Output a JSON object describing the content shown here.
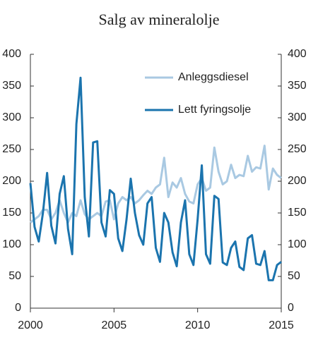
{
  "chart_data": {
    "type": "line",
    "title": "Salg av mineralolje",
    "x": [
      2000,
      2000.25,
      2000.5,
      2000.75,
      2001,
      2001.25,
      2001.5,
      2001.75,
      2002,
      2002.25,
      2002.5,
      2002.75,
      2003,
      2003.25,
      2003.5,
      2003.75,
      2004,
      2004.25,
      2004.5,
      2004.75,
      2005,
      2005.25,
      2005.5,
      2005.75,
      2006,
      2006.25,
      2006.5,
      2006.75,
      2007,
      2007.25,
      2007.5,
      2007.75,
      2008,
      2008.25,
      2008.5,
      2008.75,
      2009,
      2009.25,
      2009.5,
      2009.75,
      2010,
      2010.25,
      2010.5,
      2010.75,
      2011,
      2011.25,
      2011.5,
      2011.75,
      2012,
      2012.25,
      2012.5,
      2012.75,
      2013,
      2013.25,
      2013.5,
      2013.75,
      2014,
      2014.25,
      2014.5,
      2014.75,
      2015
    ],
    "series": [
      {
        "name": "Anleggsdiesel",
        "color": "#a9c9e2",
        "values": [
          135,
          140,
          145,
          155,
          155,
          140,
          150,
          170,
          150,
          135,
          150,
          145,
          170,
          148,
          140,
          145,
          150,
          145,
          168,
          170,
          140,
          165,
          175,
          170,
          175,
          165,
          170,
          178,
          185,
          180,
          190,
          195,
          237,
          175,
          198,
          190,
          205,
          180,
          168,
          165,
          195,
          205,
          185,
          190,
          253,
          215,
          195,
          200,
          226,
          205,
          210,
          208,
          240,
          215,
          222,
          220,
          256,
          187,
          220,
          210,
          205
        ]
      },
      {
        "name": "Lett fyringsolje",
        "color": "#1b74ae",
        "values": [
          197,
          128,
          105,
          150,
          213,
          130,
          102,
          180,
          208,
          125,
          85,
          290,
          363,
          175,
          113,
          261,
          263,
          135,
          113,
          186,
          180,
          110,
          90,
          140,
          204,
          150,
          115,
          100,
          165,
          175,
          95,
          73,
          150,
          135,
          88,
          66,
          135,
          170,
          85,
          68,
          140,
          225,
          85,
          70,
          177,
          172,
          72,
          68,
          95,
          105,
          65,
          60,
          110,
          115,
          70,
          68,
          90,
          44,
          44,
          68,
          73
        ]
      }
    ],
    "xlim": [
      2000,
      2015
    ],
    "xticks": [
      2000,
      2005,
      2010,
      2015
    ],
    "ylim": [
      0,
      400
    ],
    "yticks": [
      0,
      50,
      100,
      150,
      200,
      250,
      300,
      350,
      400
    ],
    "y2lim": [
      0,
      400
    ],
    "y2ticks": [
      0,
      50,
      100,
      150,
      200,
      250,
      300,
      350,
      400
    ],
    "legend": "top-right"
  }
}
